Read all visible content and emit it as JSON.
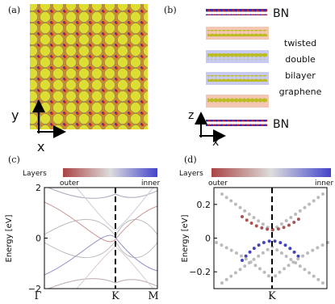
{
  "panels": {
    "a": {
      "label": "(a)",
      "axes": [
        "y",
        "x"
      ]
    },
    "b": {
      "label": "(b)",
      "top": "BN",
      "bottom": "BN",
      "stack": [
        "twisted",
        "double",
        "bilayer",
        "graphene"
      ],
      "axes": [
        "z",
        "x"
      ]
    },
    "c": {
      "label": "(c)",
      "colorbar": {
        "title": "Layers",
        "left": "outer",
        "right": "inner"
      },
      "ylabel": "Energy [eV]",
      "ylim": [
        -2,
        2
      ],
      "yticks": [
        {
          "value": -2,
          "label": "−2"
        },
        0,
        2
      ],
      "xlabels": [
        "Γ",
        "K",
        "M"
      ]
    },
    "d": {
      "label": "(d)",
      "colorbar": {
        "title": "Layers",
        "left": "outer",
        "right": "inner"
      },
      "ylabel": "Energy [eV]",
      "ylim": [
        -0.3,
        0.3
      ],
      "yticks": [
        {
          "value": -0.2,
          "label": "−0.2"
        },
        0,
        0.2
      ],
      "xlabels": [
        "K"
      ]
    }
  }
}
